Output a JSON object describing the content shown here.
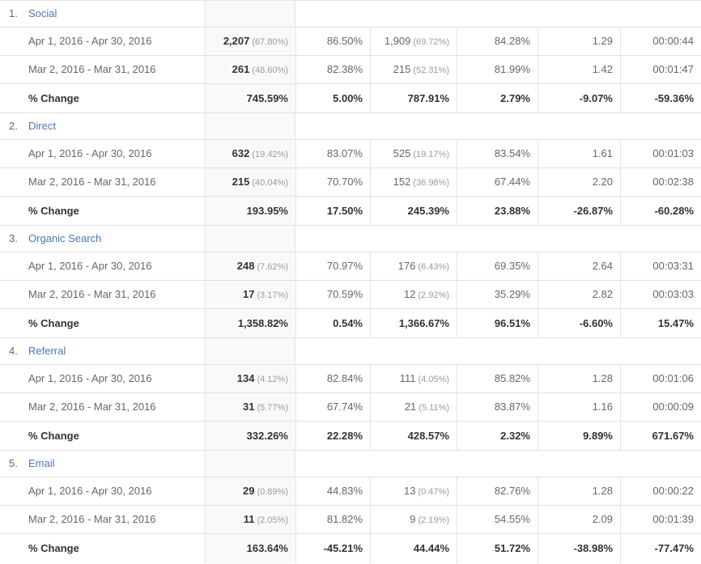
{
  "page": {
    "background": "#ffffff",
    "link_color": "#4678b4",
    "shaded_column_color": "#f9f9f9",
    "border_color": "#e0e0e0",
    "date_range_primary": "Apr 1, 2016 - Apr 30, 2016",
    "date_range_comparison": "Mar 2, 2016 - Mar 31, 2016"
  },
  "table": {
    "sections": [
      {
        "index": "1.",
        "channel": "Social",
        "rows": [
          {
            "label": "Apr 1, 2016 - Apr 30, 2016",
            "sessions": "2,207",
            "sessions_share": "(67.80%)",
            "pct_new_sessions": "86.50%",
            "new_users": "1,909",
            "new_users_share": "(69.72%)",
            "bounce_rate": "84.28%",
            "pages_per_session": "1.29",
            "avg_duration": "00:00:44"
          },
          {
            "label": "Mar 2, 2016 - Mar 31, 2016",
            "sessions": "261",
            "sessions_share": "(48.60%)",
            "pct_new_sessions": "82.38%",
            "new_users": "215",
            "new_users_share": "(52.31%)",
            "bounce_rate": "81.99%",
            "pages_per_session": "1.42",
            "avg_duration": "00:01:47"
          }
        ],
        "change": {
          "label": "% Change",
          "sessions": "745.59%",
          "pct_new_sessions": "5.00%",
          "new_users": "787.91%",
          "bounce_rate": "2.79%",
          "pages_per_session": "-9.07%",
          "avg_duration": "-59.36%"
        }
      },
      {
        "index": "2.",
        "channel": "Direct",
        "rows": [
          {
            "label": "Apr 1, 2016 - Apr 30, 2016",
            "sessions": "632",
            "sessions_share": "(19.42%)",
            "pct_new_sessions": "83.07%",
            "new_users": "525",
            "new_users_share": "(19.17%)",
            "bounce_rate": "83.54%",
            "pages_per_session": "1.61",
            "avg_duration": "00:01:03"
          },
          {
            "label": "Mar 2, 2016 - Mar 31, 2016",
            "sessions": "215",
            "sessions_share": "(40.04%)",
            "pct_new_sessions": "70.70%",
            "new_users": "152",
            "new_users_share": "(36.98%)",
            "bounce_rate": "67.44%",
            "pages_per_session": "2.20",
            "avg_duration": "00:02:38"
          }
        ],
        "change": {
          "label": "% Change",
          "sessions": "193.95%",
          "pct_new_sessions": "17.50%",
          "new_users": "245.39%",
          "bounce_rate": "23.88%",
          "pages_per_session": "-26.87%",
          "avg_duration": "-60.28%"
        }
      },
      {
        "index": "3.",
        "channel": "Organic Search",
        "rows": [
          {
            "label": "Apr 1, 2016 - Apr 30, 2016",
            "sessions": "248",
            "sessions_share": "(7.62%)",
            "pct_new_sessions": "70.97%",
            "new_users": "176",
            "new_users_share": "(6.43%)",
            "bounce_rate": "69.35%",
            "pages_per_session": "2.64",
            "avg_duration": "00:03:31"
          },
          {
            "label": "Mar 2, 2016 - Mar 31, 2016",
            "sessions": "17",
            "sessions_share": "(3.17%)",
            "pct_new_sessions": "70.59%",
            "new_users": "12",
            "new_users_share": "(2.92%)",
            "bounce_rate": "35.29%",
            "pages_per_session": "2.82",
            "avg_duration": "00:03:03"
          }
        ],
        "change": {
          "label": "% Change",
          "sessions": "1,358.82%",
          "pct_new_sessions": "0.54%",
          "new_users": "1,366.67%",
          "bounce_rate": "96.51%",
          "pages_per_session": "-6.60%",
          "avg_duration": "15.47%"
        }
      },
      {
        "index": "4.",
        "channel": "Referral",
        "rows": [
          {
            "label": "Apr 1, 2016 - Apr 30, 2016",
            "sessions": "134",
            "sessions_share": "(4.12%)",
            "pct_new_sessions": "82.84%",
            "new_users": "111",
            "new_users_share": "(4.05%)",
            "bounce_rate": "85.82%",
            "pages_per_session": "1.28",
            "avg_duration": "00:01:06"
          },
          {
            "label": "Mar 2, 2016 - Mar 31, 2016",
            "sessions": "31",
            "sessions_share": "(5.77%)",
            "pct_new_sessions": "67.74%",
            "new_users": "21",
            "new_users_share": "(5.11%)",
            "bounce_rate": "83.87%",
            "pages_per_session": "1.16",
            "avg_duration": "00:00:09"
          }
        ],
        "change": {
          "label": "% Change",
          "sessions": "332.26%",
          "pct_new_sessions": "22.28%",
          "new_users": "428.57%",
          "bounce_rate": "2.32%",
          "pages_per_session": "9.89%",
          "avg_duration": "671.67%"
        }
      },
      {
        "index": "5.",
        "channel": "Email",
        "rows": [
          {
            "label": "Apr 1, 2016 - Apr 30, 2016",
            "sessions": "29",
            "sessions_share": "(0.89%)",
            "pct_new_sessions": "44.83%",
            "new_users": "13",
            "new_users_share": "(0.47%)",
            "bounce_rate": "82.76%",
            "pages_per_session": "1.28",
            "avg_duration": "00:00:22"
          },
          {
            "label": "Mar 2, 2016 - Mar 31, 2016",
            "sessions": "11",
            "sessions_share": "(2.05%)",
            "pct_new_sessions": "81.82%",
            "new_users": "9",
            "new_users_share": "(2.19%)",
            "bounce_rate": "54.55%",
            "pages_per_session": "2.09",
            "avg_duration": "00:01:39"
          }
        ],
        "change": {
          "label": "% Change",
          "sessions": "163.64%",
          "pct_new_sessions": "-45.21%",
          "new_users": "44.44%",
          "bounce_rate": "51.72%",
          "pages_per_session": "-38.98%",
          "avg_duration": "-77.47%"
        }
      }
    ]
  }
}
